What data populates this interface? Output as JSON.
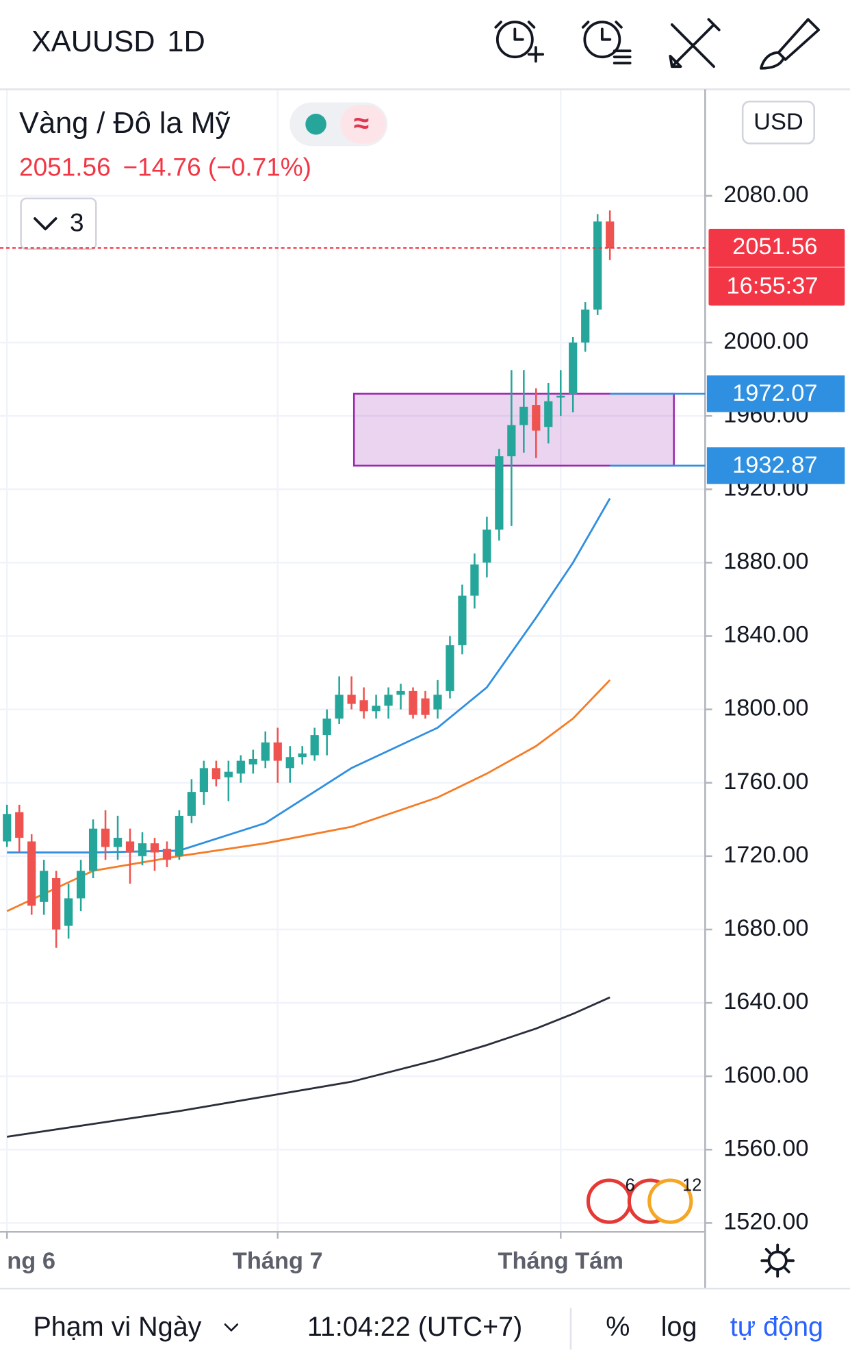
{
  "header": {
    "symbol": "XAUUSD",
    "interval": "1D"
  },
  "legend": {
    "name": "Vàng / Đô la Mỹ",
    "last": "2051.56",
    "change": "−14.76 (−0.71%)",
    "indicators": "3"
  },
  "chart_data": {
    "type": "candlestick",
    "currency": "USD",
    "xlim": [
      -0.57,
      56.74
    ],
    "xticks": [
      {
        "value": 0,
        "label": "ng 6"
      },
      {
        "value": 22,
        "label": "Tháng 7"
      },
      {
        "value": 45,
        "label": "Tháng Tám"
      }
    ],
    "ylim": [
      1515.2,
      2137.6
    ],
    "yticks": [
      {
        "value": 1520,
        "label": "1520.00"
      },
      {
        "value": 1560,
        "label": "1560.00"
      },
      {
        "value": 1600,
        "label": "1600.00"
      },
      {
        "value": 1640,
        "label": "1640.00"
      },
      {
        "value": 1680,
        "label": "1680.00"
      },
      {
        "value": 1720,
        "label": "1720.00"
      },
      {
        "value": 1760,
        "label": "1760.00"
      },
      {
        "value": 1800,
        "label": "1800.00"
      },
      {
        "value": 1840,
        "label": "1840.00"
      },
      {
        "value": 1880,
        "label": "1880.00"
      },
      {
        "value": 1920,
        "label": "1920.00"
      },
      {
        "value": 1960,
        "label": "1960.00"
      },
      {
        "value": 2000,
        "label": "2000.00"
      },
      {
        "value": 2080,
        "label": "2080.00"
      }
    ],
    "grid": true,
    "up_color": "#26a69a",
    "down_color": "#ef5350",
    "open": [
      1728,
      1744,
      1728,
      1695,
      1708,
      1682,
      1697,
      1712,
      1735,
      1725,
      1728,
      1720,
      1727,
      1724,
      1720,
      1742,
      1755,
      1768,
      1763,
      1765,
      1770,
      1772,
      1782,
      1768,
      1774,
      1775,
      1786,
      1795,
      1808,
      1805,
      1799,
      1802,
      1808,
      1810,
      1806,
      1800,
      1810,
      1835,
      1862,
      1880,
      1898,
      1938,
      1955,
      1966,
      1954,
      1970,
      1972,
      2000,
      2018,
      2066
    ],
    "high": [
      1748,
      1748,
      1732,
      1718,
      1712,
      1705,
      1718,
      1740,
      1745,
      1742,
      1735,
      1733,
      1730,
      1728,
      1745,
      1762,
      1772,
      1772,
      1772,
      1775,
      1778,
      1788,
      1790,
      1780,
      1780,
      1790,
      1800,
      1818,
      1818,
      1812,
      1808,
      1812,
      1814,
      1812,
      1810,
      1816,
      1840,
      1868,
      1885,
      1905,
      1942,
      1985,
      1985,
      1975,
      1978,
      1985,
      2003,
      2022,
      2070,
      2072
    ],
    "low": [
      1725,
      1722,
      1688,
      1688,
      1670,
      1675,
      1690,
      1708,
      1718,
      1718,
      1705,
      1715,
      1712,
      1714,
      1718,
      1738,
      1748,
      1758,
      1750,
      1760,
      1765,
      1768,
      1760,
      1760,
      1770,
      1772,
      1775,
      1792,
      1800,
      1795,
      1795,
      1795,
      1800,
      1795,
      1795,
      1795,
      1806,
      1830,
      1855,
      1872,
      1892,
      1900,
      1940,
      1937,
      1945,
      1960,
      1962,
      1995,
      2015,
      2045
    ],
    "close": [
      1743,
      1730,
      1693,
      1712,
      1680,
      1697,
      1712,
      1735,
      1725,
      1730,
      1722,
      1727,
      1722,
      1718,
      1742,
      1755,
      1768,
      1762,
      1766,
      1772,
      1773,
      1782,
      1772,
      1774,
      1776,
      1786,
      1795,
      1808,
      1803,
      1799,
      1802,
      1808,
      1810,
      1797,
      1797,
      1808,
      1835,
      1862,
      1879,
      1898,
      1938,
      1955,
      1965,
      1952,
      1968,
      1971,
      2000,
      2018,
      2066,
      2051.56
    ],
    "series": [
      {
        "color": "#2f8fe0",
        "x": [
          0,
          7,
          14,
          21,
          28,
          35,
          39,
          43,
          46,
          49
        ],
        "values": [
          1722,
          1722,
          1723,
          1738,
          1768,
          1790,
          1812,
          1850,
          1880,
          1915
        ]
      },
      {
        "color": "#f57c25",
        "x": [
          0,
          7,
          14,
          21,
          28,
          35,
          39,
          43,
          46,
          49
        ],
        "values": [
          1690,
          1712,
          1720,
          1727,
          1736,
          1752,
          1765,
          1780,
          1795,
          1816
        ]
      },
      {
        "color": "#2a2e39",
        "x": [
          0,
          7,
          14,
          21,
          28,
          35,
          39,
          43,
          46,
          49
        ],
        "values": [
          1567,
          1574,
          1581,
          1589,
          1597,
          1609,
          1617,
          1626,
          1634,
          1643
        ]
      }
    ],
    "price_line": {
      "value": 2051.56,
      "countdown": "16:55:37",
      "color": "#f23645"
    },
    "zone": {
      "top": 1972.07,
      "bottom": 1932.87,
      "x": [
        28.2,
        54.2
      ],
      "color": "#9c27b0",
      "badge_color": "#2f8fe0"
    },
    "events": [
      "6",
      "12"
    ]
  },
  "footer": {
    "range": "Phạm vi Ngày",
    "time": "11:04:22 (UTC+7)",
    "percent": "%",
    "log": "log",
    "auto": "tự động"
  }
}
